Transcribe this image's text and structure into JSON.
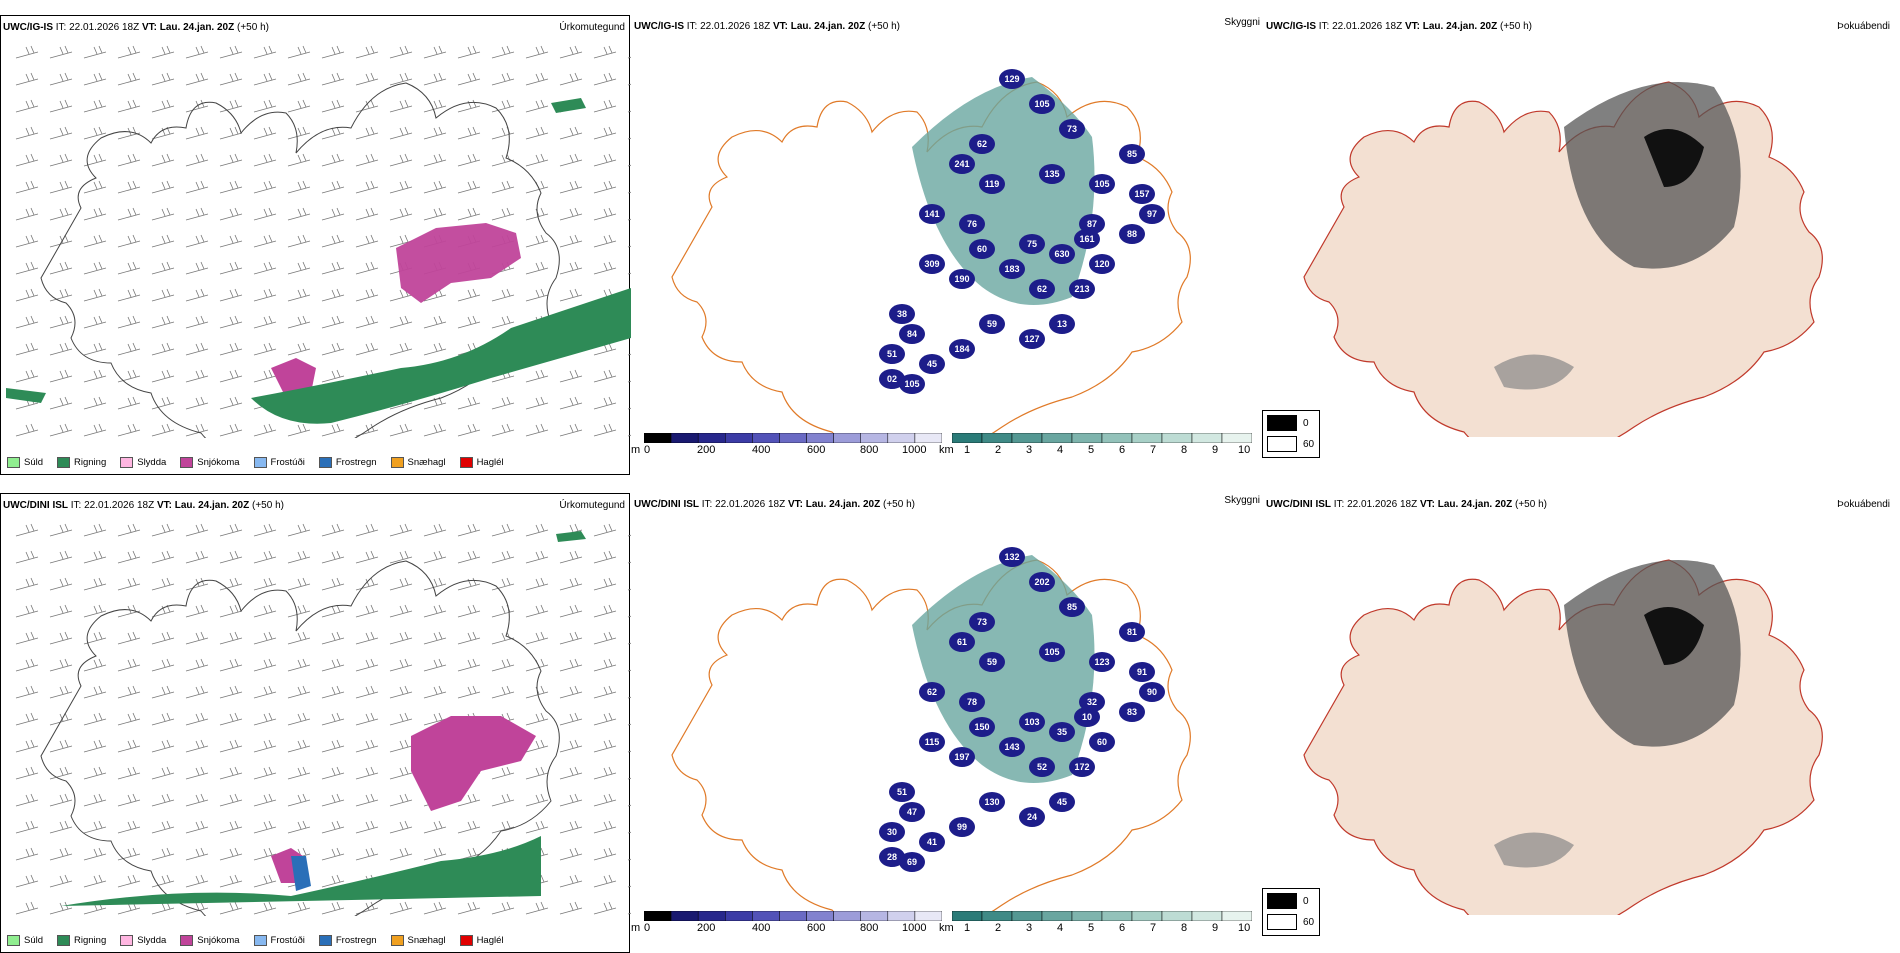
{
  "rows": [
    {
      "model": "UWC/IG-IS",
      "it_label": "IT:",
      "it_value": "22.01.2026 18Z",
      "vt_label": "VT:",
      "vt_value": "Lau. 24.jan. 20Z",
      "lead": "(+50 h)",
      "precip_label": "Úrkomutegund",
      "vis_label": "Skyggni",
      "fog_label": "Þokuábendi",
      "vis_numbers": [
        "129",
        "105",
        "73",
        "62",
        "241",
        "119",
        "135",
        "105",
        "85",
        "157",
        "141",
        "76",
        "87",
        "75",
        "630",
        "120",
        "88",
        "97",
        "309",
        "190",
        "60",
        "183",
        "62",
        "213",
        "38",
        "84",
        "51",
        "45",
        "184",
        "105",
        "13",
        "127",
        "59",
        "02",
        "161"
      ],
      "fog_legend": [
        "0",
        "60"
      ]
    },
    {
      "model": "UWC/DINI ISL",
      "it_label": "IT:",
      "it_value": "22.01.2026 18Z",
      "vt_label": "VT:",
      "vt_value": "Lau. 24.jan. 20Z",
      "lead": "(+50 h)",
      "precip_label": "Úrkomutegund",
      "vis_label": "Skyggni",
      "fog_label": "Þokuábendi",
      "vis_numbers": [
        "132",
        "202",
        "85",
        "73",
        "61",
        "59",
        "105",
        "123",
        "81",
        "91",
        "62",
        "78",
        "32",
        "103",
        "35",
        "60",
        "83",
        "90",
        "115",
        "197",
        "150",
        "143",
        "52",
        "172",
        "51",
        "47",
        "30",
        "41",
        "99",
        "69",
        "45",
        "24",
        "130",
        "28",
        "10"
      ],
      "fog_legend": [
        "0",
        "60"
      ]
    }
  ],
  "precip_legend": [
    {
      "label": "Súld",
      "color": "#90ee90"
    },
    {
      "label": "Rigning",
      "color": "#2e8b57"
    },
    {
      "label": "Slydda",
      "color": "#ffb6e1"
    },
    {
      "label": "Snjókoma",
      "color": "#c0449a"
    },
    {
      "label": "Frostúði",
      "color": "#87b8f0"
    },
    {
      "label": "Frostregn",
      "color": "#2a6fb8"
    },
    {
      "label": "Snæhagl",
      "color": "#f0a020"
    },
    {
      "label": "Haglél",
      "color": "#e00000"
    }
  ],
  "height_bar": {
    "unit": "m",
    "ticks": [
      "0",
      "200",
      "400",
      "600",
      "800",
      "1000"
    ],
    "colors": [
      "#000000",
      "#191970",
      "#27278c",
      "#3b3ba6",
      "#5252b8",
      "#6a6ac4",
      "#8282cf",
      "#9c9cd9",
      "#b6b6e3",
      "#d0d0ed",
      "#e8e8f6"
    ]
  },
  "km_bar": {
    "unit": "km",
    "ticks": [
      "1",
      "2",
      "3",
      "4",
      "5",
      "6",
      "7",
      "8",
      "9",
      "10"
    ],
    "colors": [
      "#2a7b78",
      "#3f8a86",
      "#549893",
      "#69a6a0",
      "#7eb4ad",
      "#93c2ba",
      "#a8d0c7",
      "#bddcd4",
      "#d2e8e1",
      "#e7f3ee"
    ]
  }
}
